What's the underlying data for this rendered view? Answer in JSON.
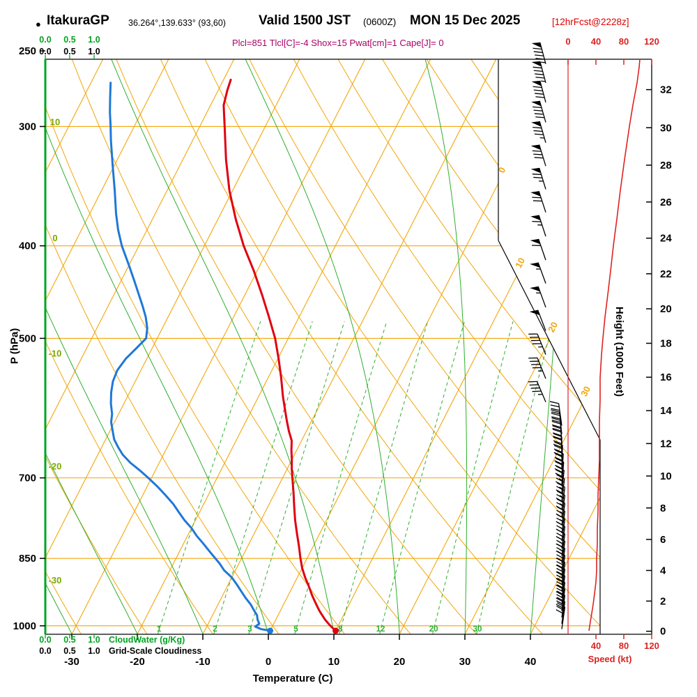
{
  "header": {
    "bullet": "●",
    "station": "ItakuraGP",
    "coords": "36.264°,139.633° (93,60)",
    "valid": "Valid 1500 JST",
    "valid_z": "(0600Z)",
    "valid_date": "MON 15 Dec 2025",
    "fcst_tag": "[12hrFcst@2228z]",
    "params": "Plcl=851 Tlcl[C]=-4 Shox=15 Pwat[cm]=1 Cape[J]= 0"
  },
  "axes": {
    "pressure_label": "P (hPa)",
    "temp_label": "Temperature (C)",
    "height_label": "Height (1000 Feet)",
    "speed_label": "Speed (kt)",
    "cloudwater_label": "CloudWater (g/Kg)",
    "cloudiness_label": "Grid-Scale Cloudiness",
    "cloud_scale": [
      "0.0",
      "0.5",
      "1.0"
    ]
  },
  "chart_data": {
    "type": "skewt",
    "title": "ItakuraGP sounding forecast valid 1500 JST (0600Z) MON 15 Dec 2025",
    "pressure_ticks": [
      250,
      300,
      400,
      500,
      700,
      850,
      1000
    ],
    "temperature_ticks": [
      -30,
      -20,
      -10,
      0,
      10,
      20,
      30,
      40
    ],
    "height_ticks_kft": [
      0,
      2,
      4,
      6,
      8,
      10,
      12,
      14,
      16,
      18,
      20,
      22,
      24,
      26,
      28,
      30,
      32
    ],
    "speed_ticks_top": [
      0,
      40,
      80,
      120
    ],
    "speed_ticks_bottom": [
      40,
      80,
      120
    ],
    "isotherm_labels": [
      0,
      10,
      20,
      30
    ],
    "dry_adiabat_labels": [
      10,
      0,
      -10,
      -20,
      -30
    ],
    "mixing_ratio_gkg": [
      1,
      2,
      3,
      5,
      8,
      12,
      20,
      30
    ],
    "surface": {
      "temp_c": 10,
      "dewpoint_c": 0
    },
    "temperature_profile_c": [
      [
        1012,
        10
      ],
      [
        1000,
        8.8
      ],
      [
        985,
        7.5
      ],
      [
        965,
        6
      ],
      [
        950,
        5
      ],
      [
        930,
        3.7
      ],
      [
        910,
        2.5
      ],
      [
        890,
        1.2
      ],
      [
        870,
        0
      ],
      [
        850,
        -1
      ],
      [
        825,
        -2.2
      ],
      [
        800,
        -3.5
      ],
      [
        775,
        -4.8
      ],
      [
        750,
        -6
      ],
      [
        725,
        -7.2
      ],
      [
        700,
        -8.5
      ],
      [
        685,
        -9.3
      ],
      [
        670,
        -10
      ],
      [
        655,
        -10.8
      ],
      [
        640,
        -11.5
      ],
      [
        625,
        -12.7
      ],
      [
        610,
        -13.8
      ],
      [
        600,
        -14.5
      ],
      [
        575,
        -16.3
      ],
      [
        550,
        -18
      ],
      [
        525,
        -19.9
      ],
      [
        500,
        -22
      ],
      [
        475,
        -24.6
      ],
      [
        450,
        -27.4
      ],
      [
        425,
        -30.5
      ],
      [
        400,
        -34
      ],
      [
        375,
        -37.3
      ],
      [
        350,
        -40.5
      ],
      [
        325,
        -43.4
      ],
      [
        300,
        -46.2
      ],
      [
        285,
        -48
      ],
      [
        275,
        -48.6
      ],
      [
        268,
        -48.9
      ]
    ],
    "dewpoint_profile_c": [
      [
        1012,
        0
      ],
      [
        1008,
        -1.5
      ],
      [
        1002,
        -2.6
      ],
      [
        995,
        -2.2
      ],
      [
        985,
        -2.8
      ],
      [
        975,
        -3.2
      ],
      [
        960,
        -4.3
      ],
      [
        950,
        -5
      ],
      [
        935,
        -6.3
      ],
      [
        920,
        -7.5
      ],
      [
        905,
        -8.7
      ],
      [
        890,
        -10
      ],
      [
        875,
        -11.7
      ],
      [
        860,
        -13
      ],
      [
        850,
        -14
      ],
      [
        835,
        -15.5
      ],
      [
        820,
        -17
      ],
      [
        805,
        -18.6
      ],
      [
        790,
        -20
      ],
      [
        775,
        -21.7
      ],
      [
        760,
        -23.2
      ],
      [
        745,
        -24.7
      ],
      [
        730,
        -26.5
      ],
      [
        715,
        -28.4
      ],
      [
        700,
        -30.5
      ],
      [
        688,
        -32.3
      ],
      [
        675,
        -34.4
      ],
      [
        662,
        -36.2
      ],
      [
        650,
        -37.5
      ],
      [
        638,
        -38.7
      ],
      [
        625,
        -39.6
      ],
      [
        612,
        -40.5
      ],
      [
        600,
        -41
      ],
      [
        585,
        -42
      ],
      [
        570,
        -42.8
      ],
      [
        555,
        -43.4
      ],
      [
        540,
        -43.6
      ],
      [
        525,
        -43.2
      ],
      [
        512,
        -42.4
      ],
      [
        500,
        -41.7
      ],
      [
        488,
        -42.3
      ],
      [
        475,
        -43.4
      ],
      [
        462,
        -44.8
      ],
      [
        450,
        -46.2
      ],
      [
        435,
        -48
      ],
      [
        420,
        -49.9
      ],
      [
        400,
        -52.6
      ],
      [
        385,
        -54.4
      ],
      [
        370,
        -56
      ],
      [
        350,
        -58
      ],
      [
        330,
        -60.2
      ],
      [
        310,
        -62.5
      ],
      [
        300,
        -63.6
      ],
      [
        290,
        -64.8
      ],
      [
        280,
        -65.9
      ],
      [
        270,
        -67
      ]
    ],
    "wind_barbs": [
      [
        258,
        95,
        345
      ],
      [
        270,
        95,
        345
      ],
      [
        283,
        90,
        345
      ],
      [
        297,
        90,
        344
      ],
      [
        312,
        85,
        344
      ],
      [
        330,
        80,
        343
      ],
      [
        349,
        75,
        343
      ],
      [
        369,
        72,
        342
      ],
      [
        391,
        68,
        342
      ],
      [
        414,
        62,
        341
      ],
      [
        438,
        58,
        340
      ],
      [
        464,
        55,
        340
      ],
      [
        491,
        52,
        339
      ],
      [
        520,
        48,
        338
      ],
      [
        551,
        46,
        338
      ],
      [
        583,
        45,
        337
      ],
      [
        617,
        44,
        352
      ],
      [
        630,
        43,
        354
      ],
      [
        643,
        42,
        356
      ],
      [
        656,
        42,
        358
      ],
      [
        669,
        41,
        0
      ],
      [
        683,
        41,
        2
      ],
      [
        697,
        40,
        4
      ],
      [
        711,
        40,
        5
      ],
      [
        725,
        39,
        6
      ],
      [
        740,
        39,
        7
      ],
      [
        755,
        38,
        8
      ],
      [
        770,
        38,
        8
      ],
      [
        785,
        37,
        8
      ],
      [
        800,
        37,
        8
      ],
      [
        815,
        36,
        8
      ],
      [
        830,
        36,
        8
      ],
      [
        845,
        35,
        8
      ],
      [
        860,
        35,
        8
      ],
      [
        875,
        34,
        8
      ],
      [
        890,
        34,
        8
      ],
      [
        905,
        33,
        8
      ],
      [
        920,
        33,
        8
      ],
      [
        935,
        32,
        8
      ],
      [
        950,
        32,
        8
      ],
      [
        965,
        31,
        8
      ],
      [
        980,
        31,
        8
      ],
      [
        995,
        30,
        8
      ],
      [
        1008,
        30,
        8
      ]
    ],
    "wind_speed_profile_kt": [
      [
        1012,
        30
      ],
      [
        990,
        32
      ],
      [
        970,
        34
      ],
      [
        950,
        36
      ],
      [
        925,
        38
      ],
      [
        900,
        40
      ],
      [
        875,
        41
      ],
      [
        850,
        41
      ],
      [
        820,
        42
      ],
      [
        790,
        42
      ],
      [
        760,
        43
      ],
      [
        730,
        43
      ],
      [
        700,
        44
      ],
      [
        670,
        45
      ],
      [
        640,
        45
      ],
      [
        610,
        45
      ],
      [
        580,
        46
      ],
      [
        550,
        46
      ],
      [
        520,
        48
      ],
      [
        500,
        50
      ],
      [
        475,
        53
      ],
      [
        450,
        57
      ],
      [
        425,
        61
      ],
      [
        400,
        65
      ],
      [
        375,
        70
      ],
      [
        350,
        75
      ],
      [
        325,
        81
      ],
      [
        300,
        88
      ],
      [
        285,
        93
      ],
      [
        270,
        99
      ],
      [
        260,
        102
      ],
      [
        255,
        103
      ]
    ],
    "colors": {
      "temperature": "#e00010",
      "dewpoint": "#1e78d7",
      "grid": "#f2a60a",
      "moist": "#2eae2e",
      "wind": "#000000",
      "speed": "#dd2222",
      "cloud": "#00a321",
      "dry_label": "#7aa800",
      "params": "#aa0066",
      "forecast_tag": "#dd0000"
    }
  }
}
